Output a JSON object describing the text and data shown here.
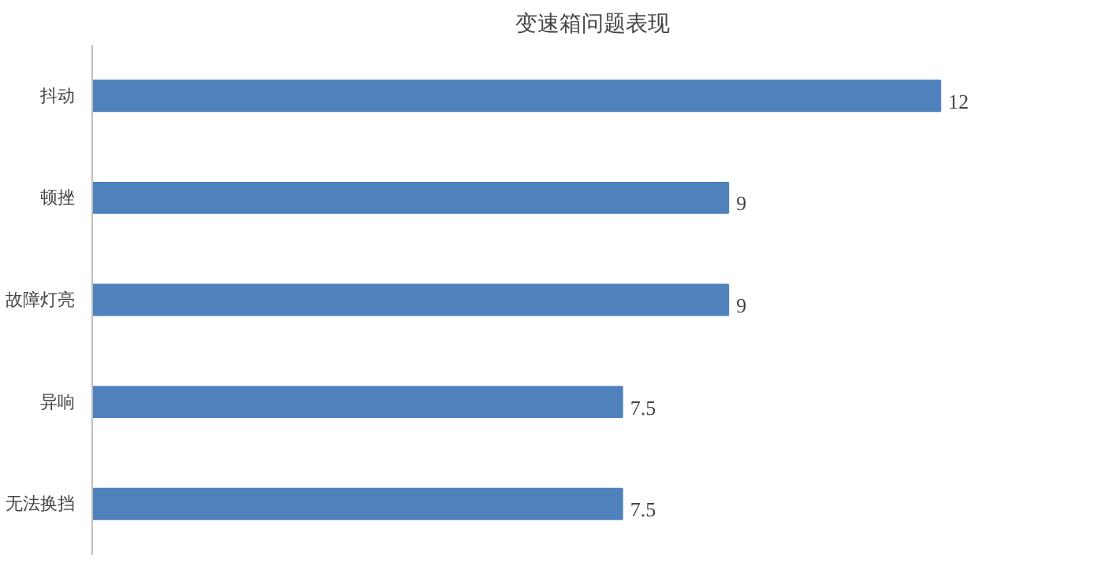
{
  "chart_data": {
    "type": "bar",
    "orientation": "horizontal",
    "title": "变速箱问题表现",
    "categories": [
      "抖动",
      "顿挫",
      "故障灯亮",
      "异响",
      "无法换挡"
    ],
    "values": [
      12,
      9,
      9,
      7.5,
      7.5
    ],
    "color": "#4f81bd",
    "data_labels": true
  }
}
